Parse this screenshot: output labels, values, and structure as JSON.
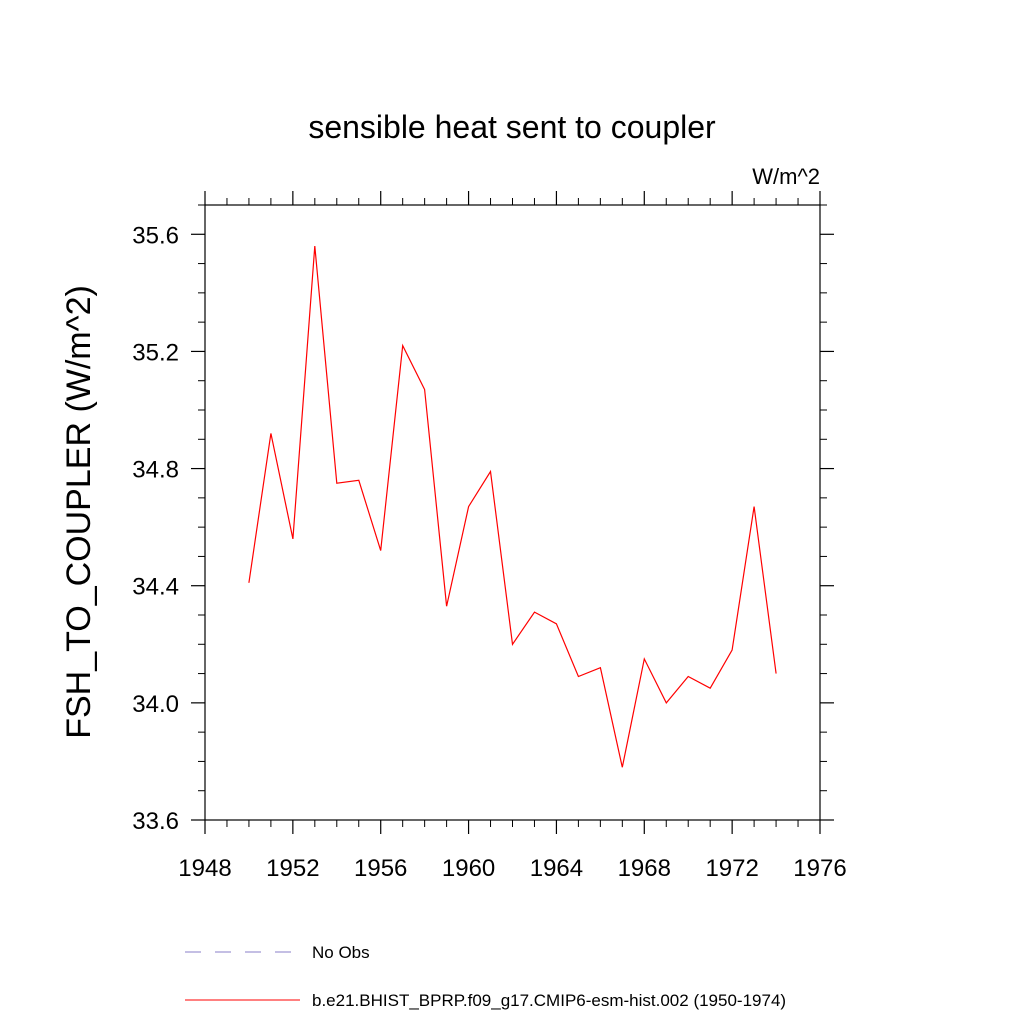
{
  "chart_data": {
    "type": "line",
    "title": "sensible heat sent to coupler",
    "units_label": "W/m^2",
    "ylabel": "FSH_TO_COUPLER  (W/m^2)",
    "xlabel": "",
    "xlim": [
      1948,
      1976
    ],
    "ylim": [
      33.6,
      35.7
    ],
    "x_ticks": [
      "1948",
      "1952",
      "1956",
      "1960",
      "1964",
      "1968",
      "1972",
      "1976"
    ],
    "y_ticks": [
      "33.6",
      "34.0",
      "34.4",
      "34.8",
      "35.2",
      "35.6"
    ],
    "grid": false,
    "series": [
      {
        "name": "b.e21.BHIST_BPRP.f09_g17.CMIP6-esm-hist.002 (1950-1974)",
        "color": "#ff0000",
        "style": "solid",
        "x": [
          1950,
          1951,
          1952,
          1953,
          1954,
          1955,
          1956,
          1957,
          1958,
          1959,
          1960,
          1961,
          1962,
          1963,
          1964,
          1965,
          1966,
          1967,
          1968,
          1969,
          1970,
          1971,
          1972,
          1973,
          1974
        ],
        "y": [
          34.41,
          34.92,
          34.56,
          35.56,
          34.75,
          34.76,
          34.52,
          35.22,
          35.07,
          34.33,
          34.67,
          34.79,
          34.2,
          34.31,
          34.27,
          34.09,
          34.12,
          33.78,
          34.15,
          34.0,
          34.09,
          34.05,
          34.18,
          34.67,
          34.1
        ]
      }
    ],
    "legend": [
      {
        "label": "No Obs",
        "color": "#8a7fc8",
        "style": "dashed"
      },
      {
        "label": "b.e21.BHIST_BPRP.f09_g17.CMIP6-esm-hist.002 (1950-1974)",
        "color": "#ff0000",
        "style": "solid"
      }
    ]
  }
}
